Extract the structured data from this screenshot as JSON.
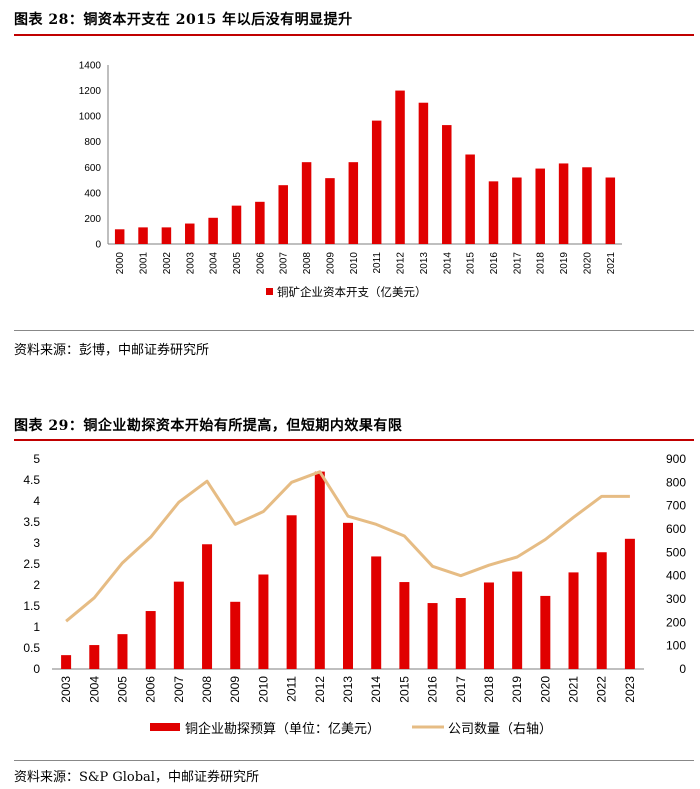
{
  "figure1": {
    "title": "图表 28：铜资本开支在 2015 年以后没有明显提升",
    "source": "资料来源：彭博，中邮证券研究所"
  },
  "figure2": {
    "title": "图表 29：铜企业勘探资本开始有所提高，但短期内效果有限",
    "source": "资料来源：S&P Global，中邮证券研究所"
  },
  "colors": {
    "red": "#e00000",
    "tan": "#e6bc84",
    "rule_red": "#c00000"
  },
  "chart_data": [
    {
      "type": "bar",
      "categories": [
        "2000",
        "2001",
        "2002",
        "2003",
        "2004",
        "2005",
        "2006",
        "2007",
        "2008",
        "2009",
        "2010",
        "2011",
        "2012",
        "2013",
        "2014",
        "2015",
        "2016",
        "2017",
        "2018",
        "2019",
        "2020",
        "2021"
      ],
      "series": [
        {
          "name": "铜矿企业资本开支（亿美元）",
          "values": [
            115,
            130,
            130,
            160,
            205,
            300,
            330,
            460,
            640,
            515,
            640,
            965,
            1200,
            1105,
            930,
            700,
            490,
            520,
            590,
            630,
            600,
            520
          ]
        }
      ],
      "ylim": [
        0,
        1400
      ],
      "yticks": [
        0,
        200,
        400,
        600,
        800,
        1000,
        1200,
        1400
      ],
      "legend": "bottom",
      "grid": false
    },
    {
      "type": "bar+line",
      "categories": [
        "2003",
        "2004",
        "2005",
        "2006",
        "2007",
        "2008",
        "2009",
        "2010",
        "2011",
        "2012",
        "2013",
        "2014",
        "2015",
        "2016",
        "2017",
        "2018",
        "2019",
        "2020",
        "2021",
        "2022",
        "2023"
      ],
      "series": [
        {
          "name": "铜企业勘探预算（单位：亿美元）",
          "type": "bar",
          "axis": "left",
          "values": [
            0.33,
            0.57,
            0.83,
            1.38,
            2.08,
            2.97,
            1.6,
            2.25,
            3.66,
            4.7,
            3.48,
            2.68,
            2.07,
            1.57,
            1.69,
            2.06,
            2.32,
            1.74,
            2.3,
            2.78,
            3.1
          ]
        },
        {
          "name": "公司数量（右轴）",
          "type": "line",
          "axis": "right",
          "values": [
            205,
            305,
            455,
            565,
            715,
            805,
            620,
            675,
            800,
            845,
            655,
            620,
            570,
            440,
            400,
            445,
            480,
            555,
            650,
            740,
            740
          ]
        }
      ],
      "ylim_left": [
        0,
        5
      ],
      "yticks_left": [
        "0",
        "0.5",
        "1",
        "1.5",
        "2",
        "2.5",
        "3",
        "3.5",
        "4",
        "4.5",
        "5"
      ],
      "ylim_right": [
        0,
        900
      ],
      "yticks_right": [
        0,
        100,
        200,
        300,
        400,
        500,
        600,
        700,
        800,
        900
      ],
      "legend": "bottom",
      "grid": false
    }
  ]
}
